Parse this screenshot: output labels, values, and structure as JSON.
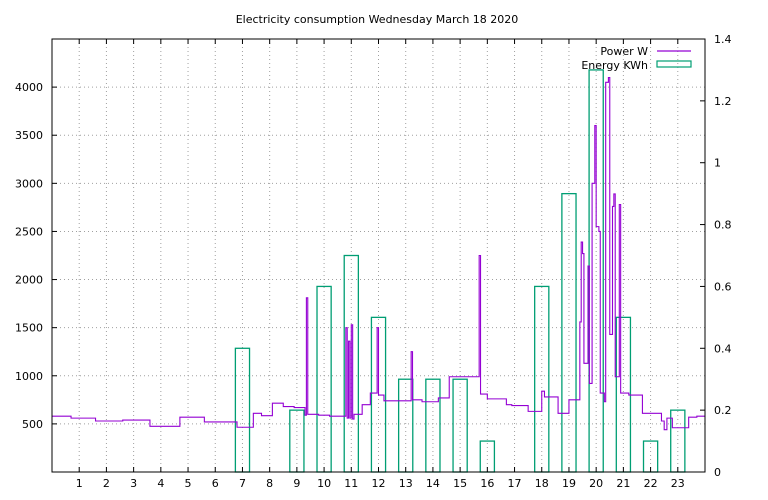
{
  "chart_data": {
    "type": "line",
    "title": "Electricity consumption Wednesday March 18 2020",
    "xlabel": "",
    "ylabel": "",
    "y2label": "",
    "xlim": [
      0,
      24
    ],
    "ylim": [
      0,
      4500
    ],
    "y2lim": [
      0,
      1.4
    ],
    "x_ticks": [
      1,
      2,
      3,
      4,
      5,
      6,
      7,
      8,
      9,
      10,
      11,
      12,
      13,
      14,
      15,
      16,
      17,
      18,
      19,
      20,
      21,
      22,
      23
    ],
    "x_tick_labels": [
      "1",
      "2",
      "3",
      "4",
      "5",
      "6",
      "7",
      "8",
      "9",
      "10",
      "11",
      "12",
      "13",
      "14",
      "15",
      "16",
      "17",
      "18",
      "19",
      "20",
      "21",
      "22",
      "23"
    ],
    "y_ticks": [
      500,
      1000,
      1500,
      2000,
      2500,
      3000,
      3500,
      4000
    ],
    "y_tick_labels": [
      "500",
      "1000",
      "1500",
      "2000",
      "2500",
      "3000",
      "3500",
      "4000"
    ],
    "y2_ticks": [
      0,
      0.2,
      0.4,
      0.6,
      0.8,
      1,
      1.2,
      1.4
    ],
    "y2_tick_labels": [
      "0",
      "0.2",
      "0.4",
      "0.6",
      "0.8",
      "1",
      "1.2",
      "1.4"
    ],
    "grid": true,
    "legend_position": "top-right",
    "series": [
      {
        "name": "Power W",
        "type": "step",
        "axis": "y",
        "color": "#9400d3",
        "points": [
          [
            0.0,
            580
          ],
          [
            0.7,
            560
          ],
          [
            1.6,
            530
          ],
          [
            2.6,
            540
          ],
          [
            3.6,
            475
          ],
          [
            4.7,
            570
          ],
          [
            5.6,
            520
          ],
          [
            6.8,
            465
          ],
          [
            7.4,
            610
          ],
          [
            7.7,
            585
          ],
          [
            8.1,
            715
          ],
          [
            8.5,
            680
          ],
          [
            8.9,
            670
          ],
          [
            9.3,
            590
          ],
          [
            9.35,
            1810
          ],
          [
            9.4,
            600
          ],
          [
            9.8,
            590
          ],
          [
            10.2,
            580
          ],
          [
            10.8,
            1500
          ],
          [
            10.85,
            560
          ],
          [
            10.9,
            1360
          ],
          [
            10.95,
            560
          ],
          [
            11.0,
            1530
          ],
          [
            11.05,
            550
          ],
          [
            11.1,
            600
          ],
          [
            11.4,
            700
          ],
          [
            11.7,
            820
          ],
          [
            11.95,
            1500
          ],
          [
            12.0,
            800
          ],
          [
            12.2,
            740
          ],
          [
            13.2,
            1250
          ],
          [
            13.25,
            750
          ],
          [
            13.6,
            730
          ],
          [
            14.2,
            770
          ],
          [
            14.6,
            990
          ],
          [
            15.7,
            2250
          ],
          [
            15.75,
            810
          ],
          [
            16.0,
            760
          ],
          [
            16.7,
            700
          ],
          [
            16.9,
            690
          ],
          [
            17.5,
            630
          ],
          [
            18.0,
            840
          ],
          [
            18.1,
            780
          ],
          [
            18.6,
            610
          ],
          [
            19.0,
            750
          ],
          [
            19.4,
            1560
          ],
          [
            19.45,
            2390
          ],
          [
            19.5,
            2270
          ],
          [
            19.55,
            1130
          ],
          [
            19.7,
            2140
          ],
          [
            19.75,
            920
          ],
          [
            19.85,
            3000
          ],
          [
            19.95,
            3600
          ],
          [
            20.0,
            2550
          ],
          [
            20.1,
            2500
          ],
          [
            20.15,
            820
          ],
          [
            20.3,
            730
          ],
          [
            20.35,
            4050
          ],
          [
            20.45,
            4100
          ],
          [
            20.5,
            1430
          ],
          [
            20.6,
            2760
          ],
          [
            20.65,
            2890
          ],
          [
            20.7,
            990
          ],
          [
            20.85,
            2780
          ],
          [
            20.9,
            820
          ],
          [
            21.2,
            800
          ],
          [
            21.7,
            610
          ],
          [
            22.4,
            530
          ],
          [
            22.5,
            440
          ],
          [
            22.6,
            560
          ],
          [
            22.8,
            460
          ],
          [
            23.4,
            570
          ],
          [
            23.7,
            580
          ],
          [
            24.0,
            580
          ]
        ]
      },
      {
        "name": "Energy KWh",
        "type": "bar",
        "axis": "y2",
        "color": "#009e73",
        "bars": [
          [
            7,
            0.4
          ],
          [
            9,
            0.2
          ],
          [
            10,
            0.6
          ],
          [
            11,
            0.7
          ],
          [
            12,
            0.5
          ],
          [
            13,
            0.3
          ],
          [
            14,
            0.3
          ],
          [
            15,
            0.3
          ],
          [
            16,
            0.1
          ],
          [
            18,
            0.6
          ],
          [
            19,
            0.9
          ],
          [
            20,
            1.3
          ],
          [
            21,
            0.5
          ],
          [
            22,
            0.1
          ],
          [
            23,
            0.2
          ]
        ]
      }
    ]
  }
}
